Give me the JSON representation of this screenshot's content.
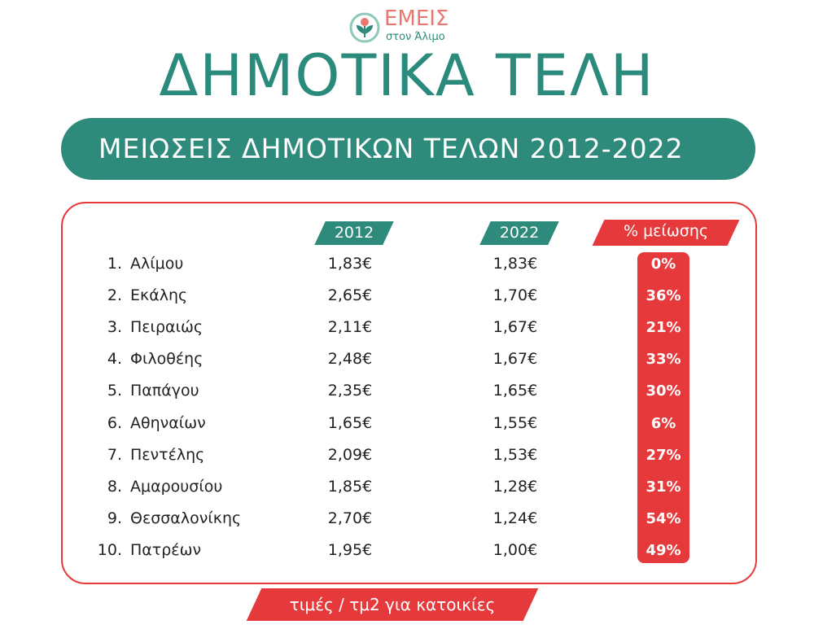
{
  "logo": {
    "name": "ΕΜΕΙΣ",
    "tagline": "στον Άλιμο"
  },
  "header": {
    "title": "ΔΗΜΟΤΙΚΑ ΤΕΛΗ",
    "subtitle": "ΜΕΙΩΣΕΙΣ ΔΗΜΟΤΙΚΩΝ ΤΕΛΩΝ 2012-2022"
  },
  "table": {
    "columns": [
      "2012",
      "2022",
      "% μείωσης"
    ],
    "rows": [
      [
        "1.",
        "Αλίμου",
        "1,83€",
        "1,83€",
        "0%"
      ],
      [
        "2.",
        "Εκάλης",
        "2,65€",
        "1,70€",
        "36%"
      ],
      [
        "3.",
        "Πειραιώς",
        "2,11€",
        "1,67€",
        "21%"
      ],
      [
        "4.",
        "Φιλοθέης",
        "2,48€",
        "1,67€",
        "33%"
      ],
      [
        "5.",
        "Παπάγου",
        "2,35€",
        "1,65€",
        "30%"
      ],
      [
        "6.",
        "Αθηναίων",
        "1,65€",
        "1,55€",
        "6%"
      ],
      [
        "7.",
        "Πεντέλης",
        "2,09€",
        "1,53€",
        "27%"
      ],
      [
        "8.",
        "Αμαρουσίου",
        "1,85€",
        "1,28€",
        "31%"
      ],
      [
        "9.",
        "Θεσσαλονίκης",
        "2,70€",
        "1,24€",
        "54%"
      ],
      [
        "10.",
        "Πατρέων",
        "1,95€",
        "1,00€",
        "49%"
      ]
    ]
  },
  "footer": {
    "note": "τιμές / τμ2 για κατοικίες"
  }
}
